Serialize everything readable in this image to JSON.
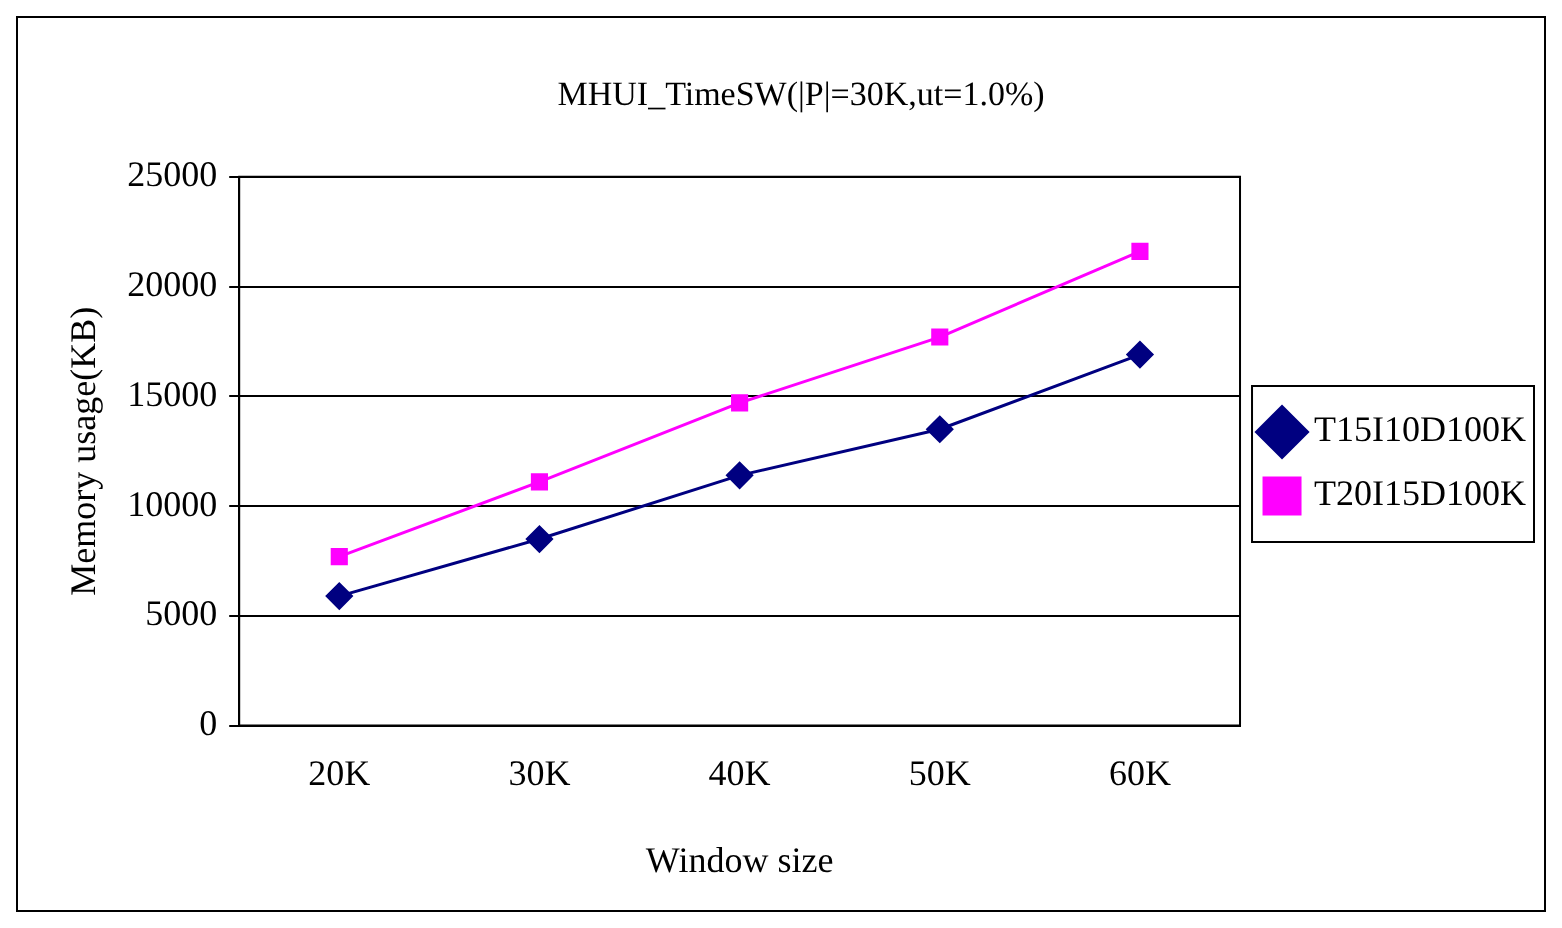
{
  "chart_data": {
    "type": "line",
    "title": "MHUI_TimeSW(|P|=30K,ut=1.0%)",
    "xlabel": "Window size",
    "ylabel": "Memory usage(KB)",
    "categories": [
      "20K",
      "30K",
      "40K",
      "50K",
      "60K"
    ],
    "series": [
      {
        "name": "T15I10D100K",
        "color": "#000080",
        "marker": "diamond",
        "values": [
          5900,
          8500,
          11400,
          13500,
          16900
        ]
      },
      {
        "name": "T20I15D100K",
        "color": "#ff00ff",
        "marker": "square",
        "values": [
          7700,
          11100,
          14700,
          17700,
          21600
        ]
      }
    ],
    "ylim": [
      0,
      25000
    ],
    "yticks": [
      0,
      5000,
      10000,
      15000,
      20000,
      25000
    ],
    "grid": "y",
    "legend": "right",
    "line_style": "solid"
  }
}
